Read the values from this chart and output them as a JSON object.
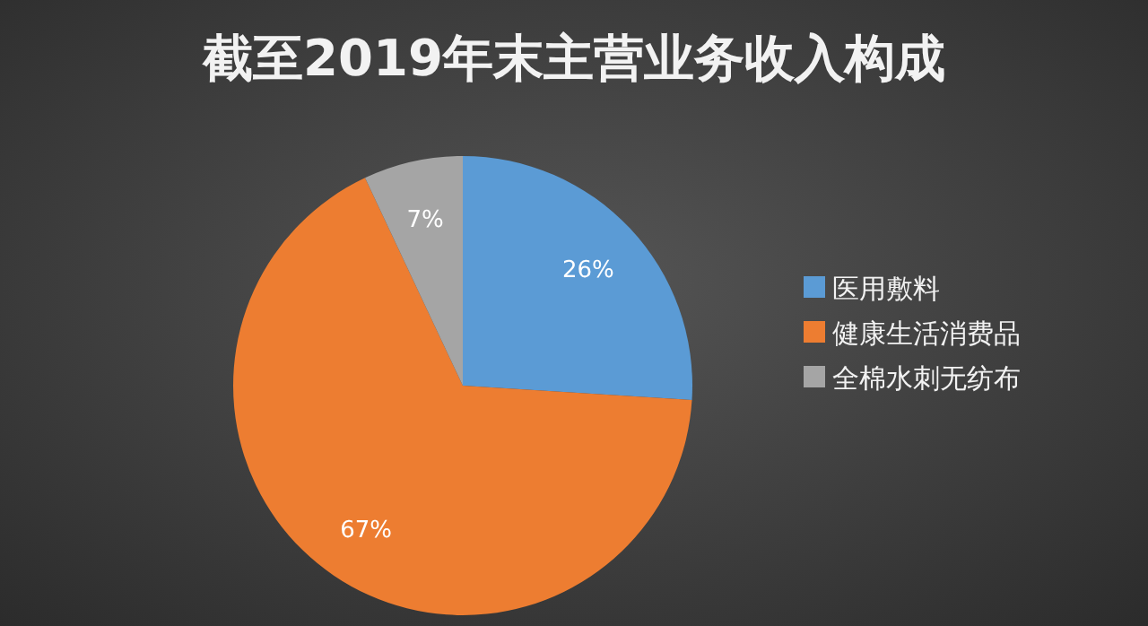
{
  "chart_data": {
    "type": "pie",
    "title": "截至2019年末主营业务收入构成",
    "categories": [
      "医用敷料",
      "健康生活消费品",
      "全棉水刺无纺布"
    ],
    "values": [
      26,
      67,
      7
    ],
    "colors": [
      "#5b9bd5",
      "#ed7d31",
      "#a5a5a5"
    ],
    "value_labels": [
      "26%",
      "67%",
      "7%"
    ],
    "legend": "right"
  }
}
